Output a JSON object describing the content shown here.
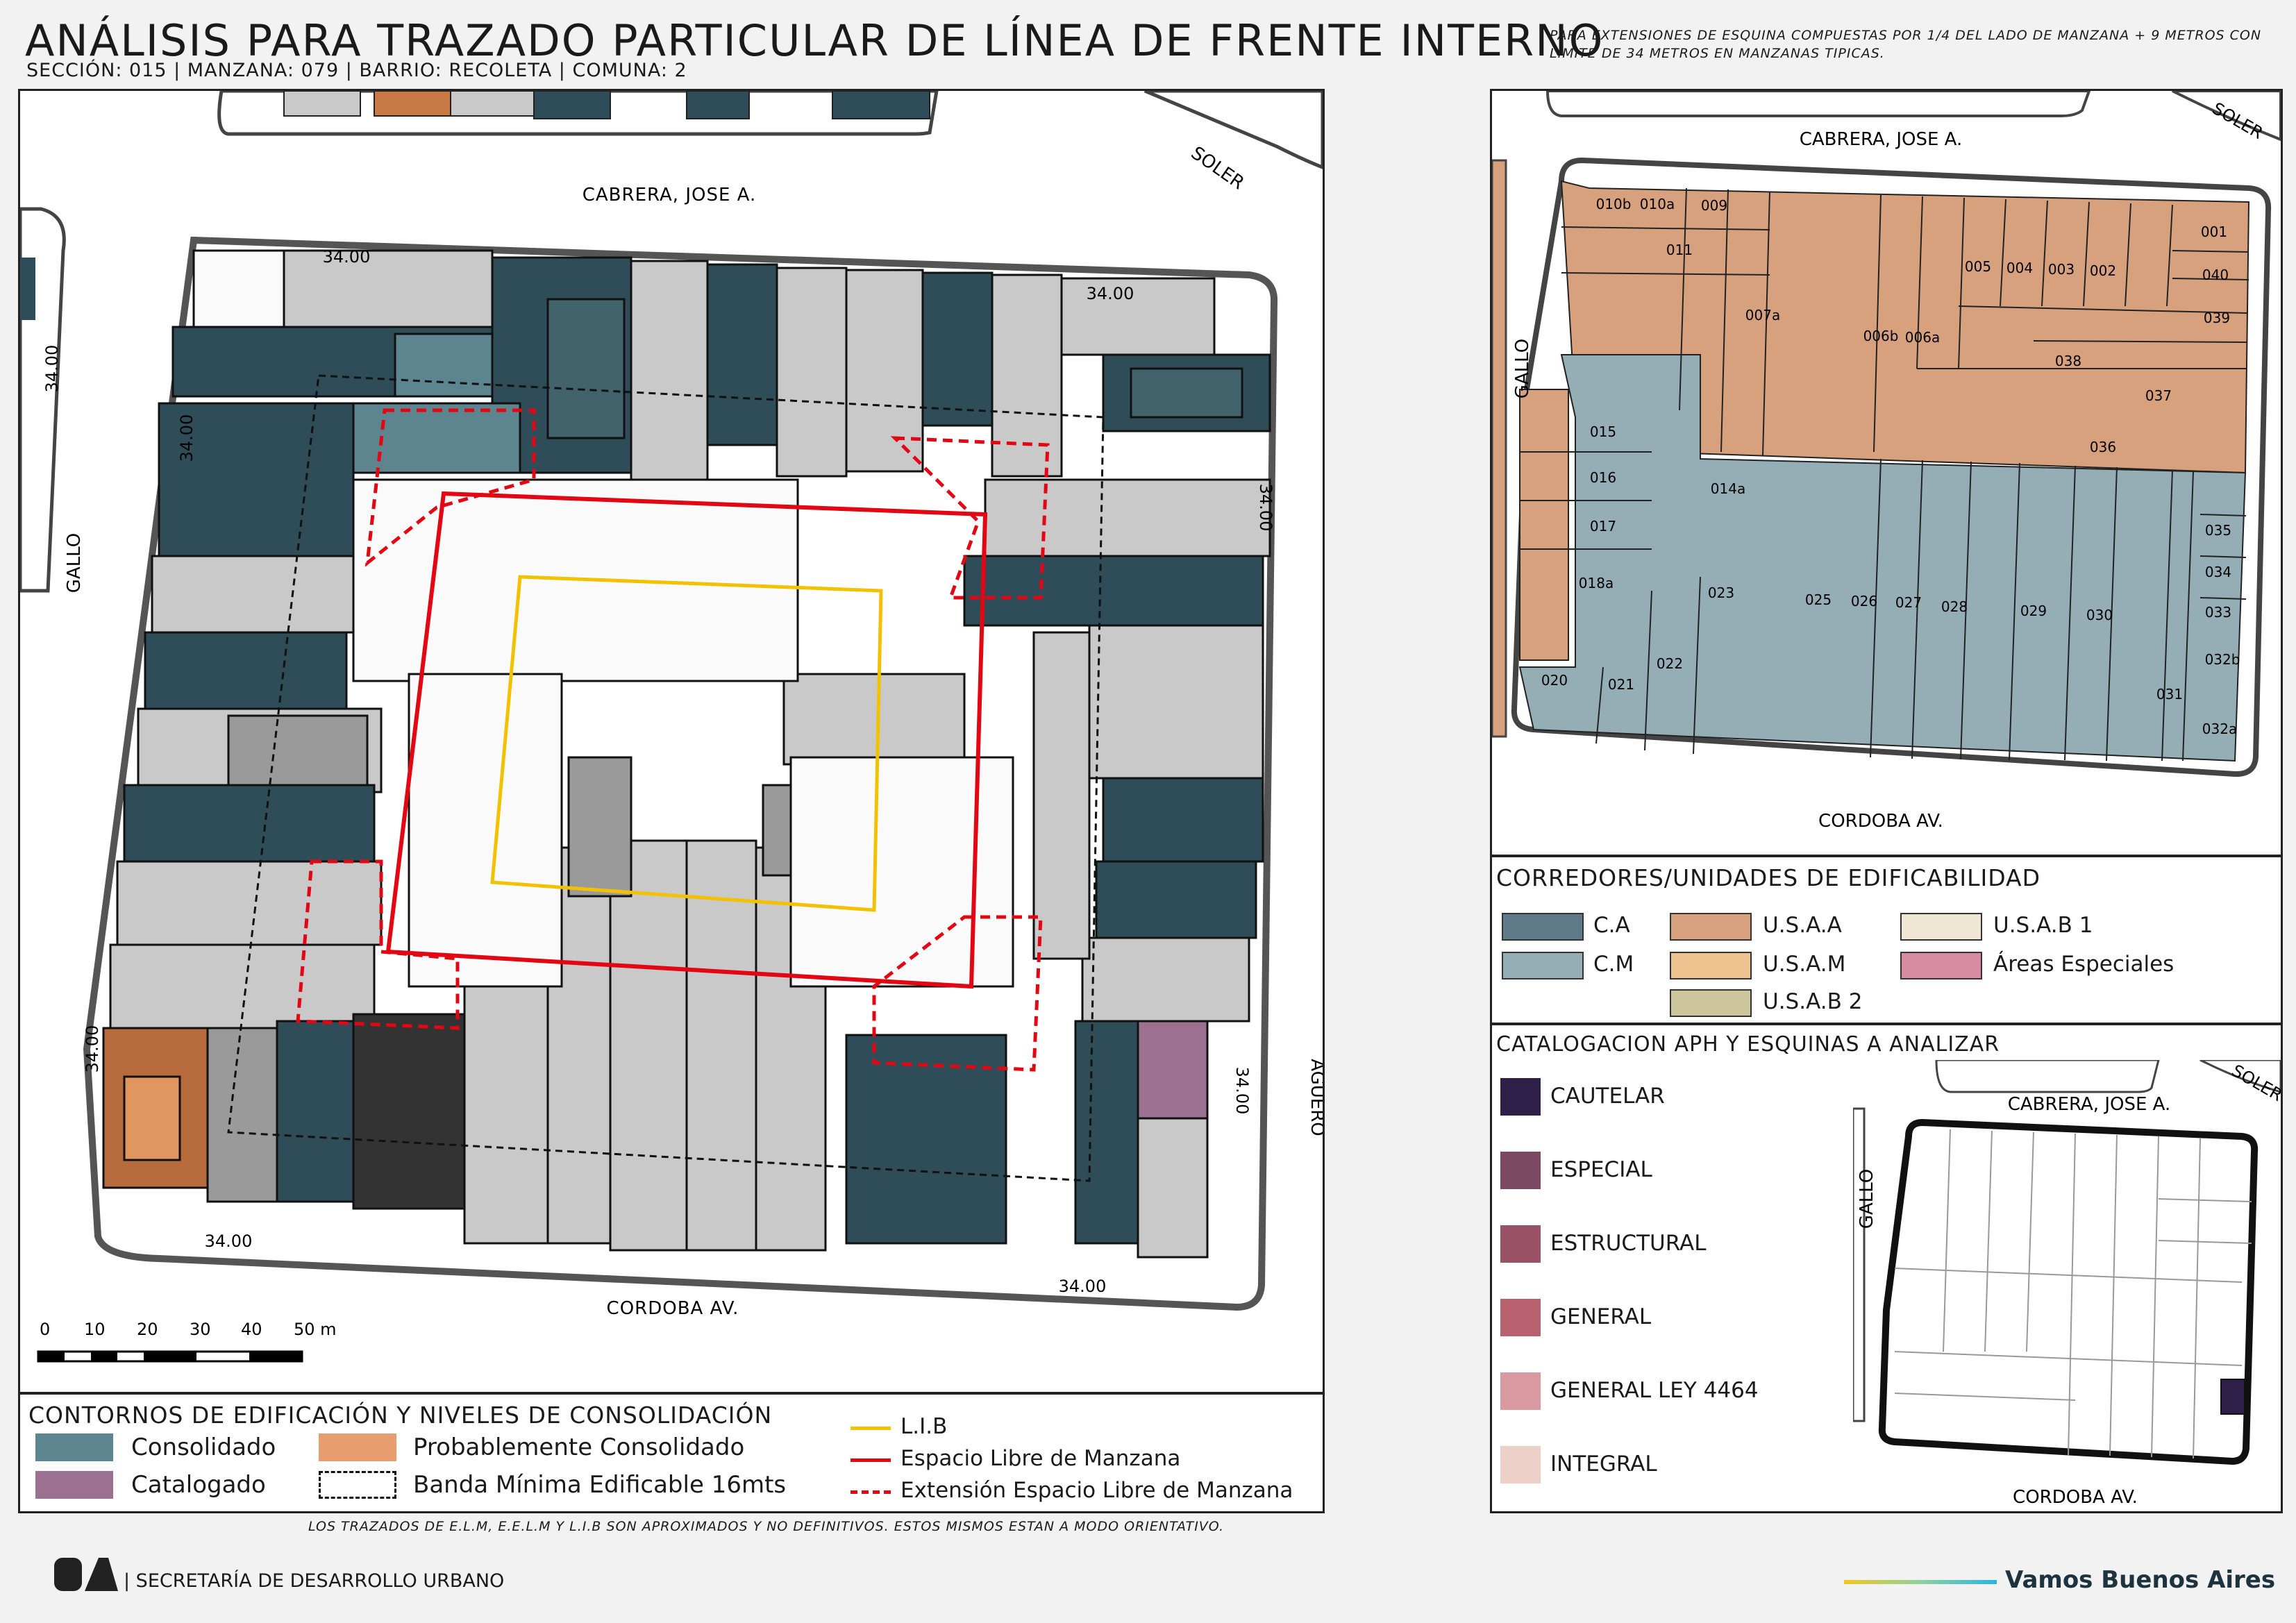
{
  "title": "ANÁLISIS PARA TRAZADO PARTICULAR DE LÍNEA DE FRENTE INTERNO",
  "subtitle": "SECCIÓN: 015 |  MANZANA: 079 | BARRIO: RECOLETA | COMUNA: 2",
  "corner_note": "PARA EXTENSIONES DE ESQUINA COMPUESTAS POR 1/4 DEL LADO DE MANZANA + 9 METROS CON LIMITE DE 34 METROS EN MANZANAS TIPICAS.",
  "main_map": {
    "streets": {
      "top": "CABRERA, JOSE A.",
      "bottom": "CORDOBA AV.",
      "left": "GALLO",
      "right": "AGUERO",
      "corner": "SOLER"
    },
    "dimension_labels": [
      "34.00",
      "34.00",
      "34.00",
      "34.00",
      "34.00",
      "34.00",
      "34.00",
      "34.00",
      "34.00"
    ],
    "scale": {
      "ticks": [
        "0",
        "10",
        "20",
        "30",
        "40",
        "50 m"
      ]
    }
  },
  "main_legend": {
    "title": "CONTORNOS DE EDIFICACIÓN Y NIVELES DE CONSOLIDACIÓN",
    "items": [
      {
        "label": "Consolidado",
        "color": "#5d8590"
      },
      {
        "label": "Probablemente Consolidado",
        "color": "#e89d6e"
      },
      {
        "label": "Catalogado",
        "color": "#9b7090"
      },
      {
        "label": "Banda Mínima Edificable 16mts",
        "color": "#ffffff"
      }
    ],
    "lines": [
      {
        "label": "L.I.B",
        "color": "#f2c200",
        "style": "solid"
      },
      {
        "label": "Espacio Libre de Manzana",
        "color": "#e30613",
        "style": "solid"
      },
      {
        "label": "Extensión Espacio Libre de Manzana",
        "color": "#e30613",
        "style": "dashed"
      }
    ]
  },
  "ref_map": {
    "streets": {
      "top": "CABRERA, JOSE A.",
      "bottom": "CORDOBA AV.",
      "left": "GALLO",
      "corner": "SOLER"
    },
    "parcels": [
      "010b",
      "010a",
      "009",
      "011",
      "007a",
      "006b",
      "006a",
      "005",
      "004",
      "003",
      "002",
      "001",
      "040",
      "039",
      "038",
      "037",
      "036",
      "015",
      "016",
      "017",
      "018a",
      "014a",
      "023",
      "025",
      "026",
      "027",
      "028",
      "029",
      "030",
      "035",
      "034",
      "033",
      "032b",
      "031",
      "032a",
      "020",
      "021",
      "022"
    ]
  },
  "corridor_legend": {
    "title": "CORREDORES/UNIDADES DE EDIFICABILIDAD",
    "items": [
      {
        "label": "C.A",
        "color": "#5f7a88"
      },
      {
        "label": "C.M",
        "color": "#95aeb6"
      },
      {
        "label": "U.S.A.A",
        "color": "#d8a17e"
      },
      {
        "label": "U.S.A.M",
        "color": "#eec28f"
      },
      {
        "label": "U.S.A.B 2",
        "color": "#cdc59b"
      },
      {
        "label": "U.S.A.B 1",
        "color": "#efe7d3"
      },
      {
        "label": "Áreas Especiales",
        "color": "#d68ba3"
      }
    ]
  },
  "cat_legend": {
    "title": "CATALOGACION APH Y ESQUINAS A ANALIZAR",
    "items": [
      {
        "label": "CAUTELAR",
        "color": "#2e1f48"
      },
      {
        "label": "ESPECIAL",
        "color": "#7b4a62"
      },
      {
        "label": "ESTRUCTURAL",
        "color": "#9a5266"
      },
      {
        "label": "GENERAL",
        "color": "#b8606e"
      },
      {
        "label": "GENERAL LEY 4464",
        "color": "#d89aa0"
      },
      {
        "label": "INTEGRAL",
        "color": "#ecd0c8"
      }
    ],
    "mini_map": {
      "top": "CABRERA, JOSE A.",
      "bottom": "CORDOBA AV.",
      "left": "GALLO",
      "corner": "SOLER"
    }
  },
  "disclaimer": "LOS TRAZADOS DE E.L.M, E.E.L.M Y L.I.B SON APROXIMADOS Y NO DEFINITIVOS. ESTOS MISMOS ESTAN A MODO ORIENTATIVO.",
  "footer": {
    "logo": "BA",
    "dept": "| SECRETARÍA DE DESARROLLO URBANO",
    "slogan": "Vamos Buenos Aires"
  }
}
